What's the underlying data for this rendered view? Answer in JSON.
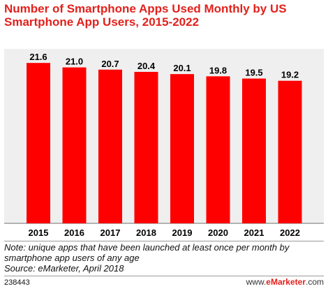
{
  "header": {
    "title": "Number of Smartphone Apps Used Monthly by US Smartphone App Users, 2015-2022"
  },
  "chart_data": {
    "type": "bar",
    "categories": [
      "2015",
      "2016",
      "2017",
      "2018",
      "2019",
      "2020",
      "2021",
      "2022"
    ],
    "values": [
      21.6,
      21.0,
      20.7,
      20.4,
      20.1,
      19.8,
      19.5,
      19.2
    ],
    "value_labels": [
      "21.6",
      "21.0",
      "20.7",
      "20.4",
      "20.1",
      "19.8",
      "19.5",
      "19.2"
    ],
    "xlabel": "",
    "ylabel": "",
    "ylim": [
      0,
      23.5
    ],
    "grid": false,
    "bar_color": "#ff0000"
  },
  "footer": {
    "note_line1": "Note: unique apps that have been launched at least once per month by",
    "note_line2": "smartphone app users of any age",
    "source": "Source: eMarketer, April 2018",
    "chart_id": "238443",
    "brand_prefix": "www.",
    "brand_name": "eMarketer",
    "brand_suffix": ".com"
  },
  "colors": {
    "title": "#e2211c",
    "bar": "#ff0000",
    "plot_background": "#efefef"
  }
}
